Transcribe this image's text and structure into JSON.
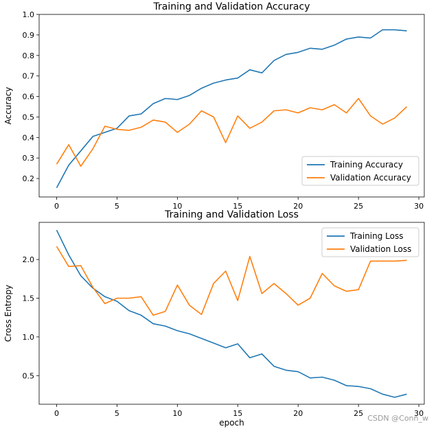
{
  "watermark": "CSDN @Conn_w",
  "chart_data": [
    {
      "type": "line",
      "title": "Training and Validation Accuracy",
      "xlabel": "",
      "ylabel": "Accuracy",
      "xlim": [
        -1.45,
        30.45
      ],
      "ylim": [
        0.11,
        1.0
      ],
      "xticks": [
        0,
        5,
        10,
        15,
        20,
        25,
        30
      ],
      "yticks": [
        0.2,
        0.3,
        0.4,
        0.5,
        0.6,
        0.7,
        0.8,
        0.9,
        1.0
      ],
      "ytick_decimals": 1,
      "legend": "lower-right",
      "x": [
        0,
        1,
        2,
        3,
        4,
        5,
        6,
        7,
        8,
        9,
        10,
        11,
        12,
        13,
        14,
        15,
        16,
        17,
        18,
        19,
        20,
        21,
        22,
        23,
        24,
        25,
        26,
        27,
        28,
        29
      ],
      "series": [
        {
          "name": "Training Accuracy",
          "color": "#1f77b4",
          "values": [
            0.155,
            0.265,
            0.335,
            0.405,
            0.425,
            0.445,
            0.505,
            0.515,
            0.565,
            0.59,
            0.585,
            0.605,
            0.64,
            0.665,
            0.68,
            0.69,
            0.73,
            0.715,
            0.775,
            0.805,
            0.815,
            0.835,
            0.83,
            0.85,
            0.88,
            0.89,
            0.885,
            0.925,
            0.925,
            0.92
          ]
        },
        {
          "name": "Validation Accuracy",
          "color": "#ff7f0e",
          "values": [
            0.27,
            0.365,
            0.26,
            0.345,
            0.455,
            0.44,
            0.435,
            0.45,
            0.485,
            0.475,
            0.425,
            0.465,
            0.53,
            0.5,
            0.375,
            0.505,
            0.445,
            0.475,
            0.53,
            0.535,
            0.52,
            0.545,
            0.535,
            0.56,
            0.52,
            0.59,
            0.505,
            0.465,
            0.495,
            0.55
          ]
        }
      ]
    },
    {
      "type": "line",
      "title": "Training and Validation Loss",
      "xlabel": "epoch",
      "ylabel": "Cross Entropy",
      "xlim": [
        -1.45,
        30.45
      ],
      "ylim": [
        0.13,
        2.48
      ],
      "xticks": [
        0,
        5,
        10,
        15,
        20,
        25,
        30
      ],
      "yticks": [
        0.5,
        1.0,
        1.5,
        2.0
      ],
      "ytick_decimals": 1,
      "legend": "top-right",
      "x": [
        0,
        1,
        2,
        3,
        4,
        5,
        6,
        7,
        8,
        9,
        10,
        11,
        12,
        13,
        14,
        15,
        16,
        17,
        18,
        19,
        20,
        21,
        22,
        23,
        24,
        25,
        26,
        27,
        28,
        29
      ],
      "series": [
        {
          "name": "Training Loss",
          "color": "#1f77b4",
          "values": [
            2.38,
            2.06,
            1.79,
            1.63,
            1.52,
            1.46,
            1.34,
            1.28,
            1.17,
            1.14,
            1.08,
            1.04,
            0.98,
            0.92,
            0.86,
            0.91,
            0.73,
            0.78,
            0.62,
            0.57,
            0.55,
            0.47,
            0.48,
            0.44,
            0.37,
            0.36,
            0.33,
            0.26,
            0.22,
            0.26
          ]
        },
        {
          "name": "Validation Loss",
          "color": "#ff7f0e",
          "values": [
            2.17,
            1.91,
            1.92,
            1.64,
            1.43,
            1.5,
            1.5,
            1.52,
            1.28,
            1.33,
            1.67,
            1.41,
            1.29,
            1.69,
            1.85,
            1.47,
            2.04,
            1.56,
            1.69,
            1.56,
            1.41,
            1.5,
            1.82,
            1.66,
            1.59,
            1.61,
            1.98,
            1.98,
            1.98,
            1.99
          ]
        }
      ]
    }
  ]
}
